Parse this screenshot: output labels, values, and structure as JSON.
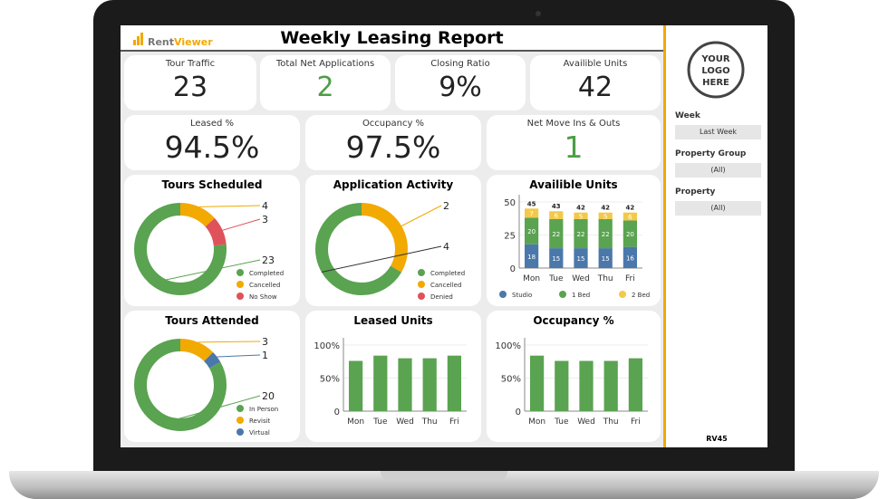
{
  "header": {
    "brand_part1": "Rent",
    "brand_part2": "Viewer",
    "title": "Weekly Leasing Report"
  },
  "kpis": [
    {
      "label": "Tour Traffic",
      "value": "23"
    },
    {
      "label": "Total Net Applications",
      "value": "2",
      "color": "#4c9e45"
    },
    {
      "label": "Closing Ratio",
      "value": "9%"
    },
    {
      "label": "Availible Units",
      "value": "42"
    },
    {
      "label": "Leased %",
      "value": "94.5%"
    },
    {
      "label": "Occupancy %",
      "value": "97.5%"
    },
    {
      "label": "Net Move Ins & Outs",
      "value": "1",
      "color": "#4c9e45"
    }
  ],
  "colors": {
    "green": "#5aa351",
    "orange": "#f2a900",
    "red": "#e0525a",
    "blue": "#4a78ab",
    "yellow": "#f3c94a",
    "accent": "#f2a900"
  },
  "chart_data": [
    {
      "type": "pie",
      "title": "Tours Scheduled",
      "donut": true,
      "labels": [
        "Completed",
        "Cancelled",
        "No Show"
      ],
      "values": [
        23,
        4,
        3
      ],
      "colors": [
        "#5aa351",
        "#f2a900",
        "#e0525a"
      ]
    },
    {
      "type": "pie",
      "title": "Application Activity",
      "donut": true,
      "labels": [
        "Completed",
        "Cancelled",
        "Denied"
      ],
      "values": [
        4,
        2,
        0
      ],
      "colors": [
        "#5aa351",
        "#f2a900",
        "#e0525a"
      ]
    },
    {
      "type": "bar",
      "stacked": true,
      "title": "Availible Units",
      "categories": [
        "Mon",
        "Tue",
        "Wed",
        "Thu",
        "Fri"
      ],
      "series": [
        {
          "name": "Studio",
          "values": [
            18,
            15,
            15,
            15,
            16
          ],
          "color": "#4a78ab"
        },
        {
          "name": "1 Bed",
          "values": [
            20,
            22,
            22,
            22,
            20
          ],
          "color": "#5aa351"
        },
        {
          "name": "2 Bed",
          "values": [
            7,
            6,
            5,
            5,
            6
          ],
          "color": "#f3c94a"
        }
      ],
      "totals": [
        45,
        43,
        42,
        42,
        42
      ],
      "yticks": [
        "0",
        "25",
        "50"
      ],
      "ylim": [
        0,
        50
      ]
    },
    {
      "type": "pie",
      "title": "Tours Attended",
      "donut": true,
      "labels": [
        "In Person",
        "Revisit",
        "Virtual"
      ],
      "values": [
        20,
        3,
        1
      ],
      "colors": [
        "#5aa351",
        "#f2a900",
        "#4a78ab"
      ]
    },
    {
      "type": "bar",
      "title": "Leased Units",
      "categories": [
        "Mon",
        "Tue",
        "Wed",
        "Thu",
        "Fri"
      ],
      "values": [
        76,
        84,
        80,
        80,
        84
      ],
      "yticks": [
        "0",
        "50%",
        "100%"
      ],
      "ylim": [
        0,
        100
      ],
      "color": "#5aa351"
    },
    {
      "type": "bar",
      "title": "Occupancy %",
      "categories": [
        "Mon",
        "Tue",
        "Wed",
        "Thu",
        "Fri"
      ],
      "values": [
        84,
        76,
        76,
        76,
        80
      ],
      "yticks": [
        "0",
        "50%",
        "100%"
      ],
      "ylim": [
        0,
        100
      ],
      "color": "#5aa351"
    }
  ],
  "sidebar": {
    "logo": "YOUR LOGO HERE",
    "filters": [
      {
        "label": "Week",
        "value": "Last Week"
      },
      {
        "label": "Property Group",
        "value": "(All)"
      },
      {
        "label": "Property",
        "value": "(All)"
      }
    ],
    "footer": "RV45"
  }
}
